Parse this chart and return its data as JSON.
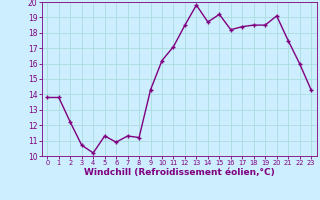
{
  "x": [
    0,
    1,
    2,
    3,
    4,
    5,
    6,
    7,
    8,
    9,
    10,
    11,
    12,
    13,
    14,
    15,
    16,
    17,
    18,
    19,
    20,
    21,
    22,
    23
  ],
  "y": [
    13.8,
    13.8,
    12.2,
    10.7,
    10.2,
    11.3,
    10.9,
    11.3,
    11.2,
    14.3,
    16.2,
    17.1,
    18.5,
    19.8,
    18.7,
    19.2,
    18.2,
    18.4,
    18.5,
    18.5,
    19.1,
    17.5,
    16.0,
    14.3
  ],
  "line_color": "#800080",
  "marker": "+",
  "marker_size": 3,
  "marker_lw": 1.0,
  "line_width": 1.0,
  "bg_color": "#cceeff",
  "grid_color": "#aadddd",
  "xlabel": "Windchill (Refroidissement éolien,°C)",
  "xlim": [
    -0.5,
    23.5
  ],
  "ylim": [
    10,
    20
  ],
  "yticks": [
    10,
    11,
    12,
    13,
    14,
    15,
    16,
    17,
    18,
    19,
    20
  ],
  "xticks": [
    0,
    1,
    2,
    3,
    4,
    5,
    6,
    7,
    8,
    9,
    10,
    11,
    12,
    13,
    14,
    15,
    16,
    17,
    18,
    19,
    20,
    21,
    22,
    23
  ],
  "tick_color": "#800080",
  "label_color": "#800080",
  "xlabel_fontsize": 6.5,
  "xlabel_bold": true,
  "ytick_fontsize": 5.5,
  "xtick_fontsize": 4.8
}
